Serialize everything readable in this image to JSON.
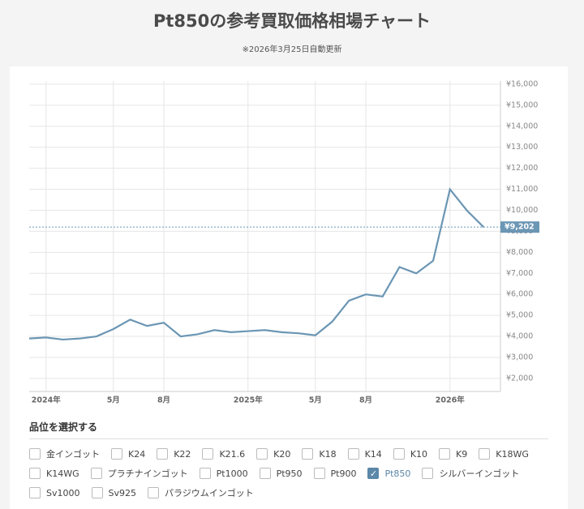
{
  "chart_data": {
    "type": "line",
    "title": "Pt850の参考買取価格相場チャート",
    "subtitle": "※2026年3月25日自動更新",
    "x": [
      "2023-12",
      "2024-01",
      "2024-02",
      "2024-03",
      "2024-04",
      "2024-05",
      "2024-06",
      "2024-07",
      "2024-08",
      "2024-09",
      "2024-10",
      "2024-11",
      "2024-12",
      "2025-01",
      "2025-02",
      "2025-03",
      "2025-04",
      "2025-05",
      "2025-06",
      "2025-07",
      "2025-08",
      "2025-09",
      "2025-10",
      "2025-11",
      "2025-12",
      "2026-01",
      "2026-02",
      "2026-03"
    ],
    "series": [
      {
        "name": "Pt850",
        "color": "#6b96b4",
        "values": [
          3900,
          3950,
          3850,
          3900,
          4000,
          4350,
          4800,
          4500,
          4650,
          4000,
          4100,
          4300,
          4200,
          4250,
          4300,
          4200,
          4150,
          4050,
          4700,
          5700,
          6000,
          5900,
          7300,
          7000,
          7600,
          11000,
          10000,
          9202
        ],
        "value_labels": [
          null,
          null,
          null,
          null,
          null,
          null,
          null,
          null,
          null,
          null,
          null,
          null,
          null,
          null,
          null,
          null,
          null,
          null,
          null,
          null,
          null,
          null,
          null,
          null,
          null,
          null,
          null,
          "¥9,202"
        ]
      }
    ],
    "xlim": [
      "2023-12",
      "2026-04"
    ],
    "xticks": [
      {
        "value": "2024-01",
        "label": "2024年"
      },
      {
        "value": "2024-05",
        "label": "5月"
      },
      {
        "value": "2024-08",
        "label": "8月"
      },
      {
        "value": "2025-01",
        "label": "2025年"
      },
      {
        "value": "2025-05",
        "label": "5月"
      },
      {
        "value": "2025-08",
        "label": "8月"
      },
      {
        "value": "2026-01",
        "label": "2026年"
      }
    ],
    "ylim": [
      1380,
      16150
    ],
    "yticks": [
      {
        "value": 2000,
        "label": "¥2,000"
      },
      {
        "value": 3000,
        "label": "¥3,000"
      },
      {
        "value": 4000,
        "label": "¥4,000"
      },
      {
        "value": 5000,
        "label": "¥5,000"
      },
      {
        "value": 6000,
        "label": "¥6,000"
      },
      {
        "value": 7000,
        "label": "¥7,000"
      },
      {
        "value": 8000,
        "label": "¥8,000"
      },
      {
        "value": 9000,
        "label": "¥9,000"
      },
      {
        "value": 10000,
        "label": "¥10,000"
      },
      {
        "value": 11000,
        "label": "¥11,000"
      },
      {
        "value": 12000,
        "label": "¥12,000"
      },
      {
        "value": 13000,
        "label": "¥13,000"
      },
      {
        "value": 14000,
        "label": "¥14,000"
      },
      {
        "value": 15000,
        "label": "¥15,000"
      },
      {
        "value": 16000,
        "label": "¥16,000"
      }
    ],
    "grid": true
  },
  "selector": {
    "title": "品位を選択する",
    "options": [
      {
        "label": "金インゴット",
        "checked": false
      },
      {
        "label": "K24",
        "checked": false
      },
      {
        "label": "K22",
        "checked": false
      },
      {
        "label": "K21.6",
        "checked": false
      },
      {
        "label": "K20",
        "checked": false
      },
      {
        "label": "K18",
        "checked": false
      },
      {
        "label": "K14",
        "checked": false
      },
      {
        "label": "K10",
        "checked": false
      },
      {
        "label": "K9",
        "checked": false
      },
      {
        "label": "K18WG",
        "checked": false
      },
      {
        "label": "K14WG",
        "checked": false
      },
      {
        "label": "プラチナインゴット",
        "checked": false
      },
      {
        "label": "Pt1000",
        "checked": false
      },
      {
        "label": "Pt950",
        "checked": false
      },
      {
        "label": "Pt900",
        "checked": false
      },
      {
        "label": "Pt850",
        "checked": true
      },
      {
        "label": "シルバーインゴット",
        "checked": false
      },
      {
        "label": "Sv1000",
        "checked": false
      },
      {
        "label": "Sv925",
        "checked": false
      },
      {
        "label": "パラジウムインゴット",
        "checked": false
      }
    ]
  }
}
